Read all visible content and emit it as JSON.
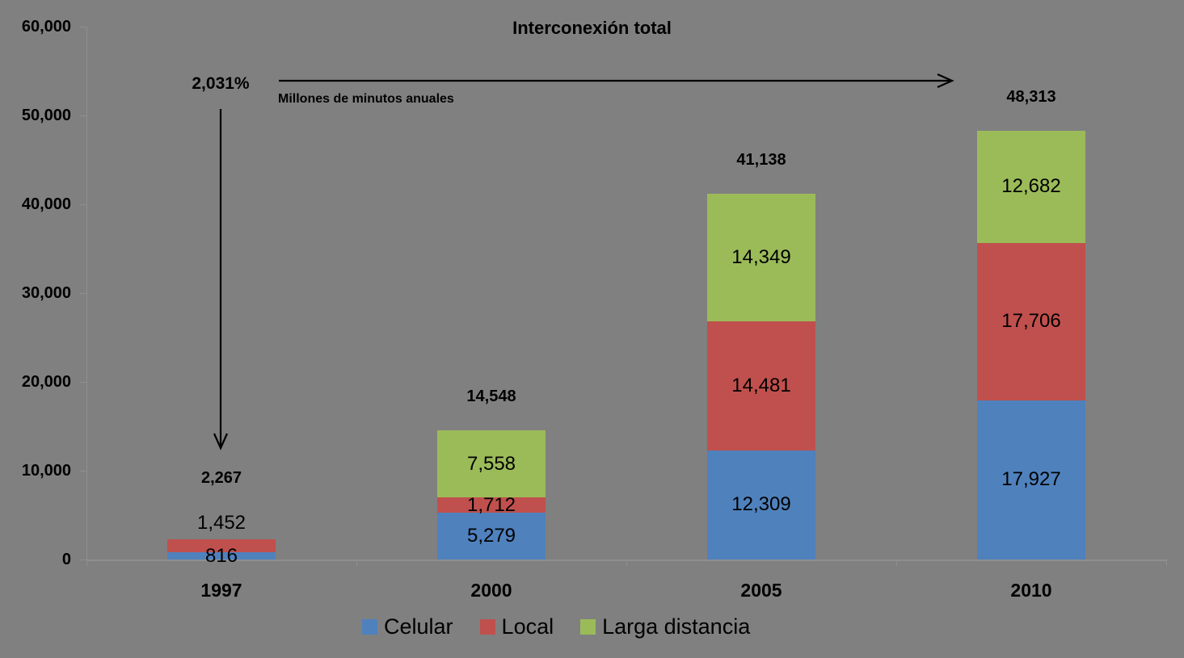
{
  "title": "Interconexión total",
  "annotations": {
    "growth_percent": "2,031%",
    "subtitle": "Millones de minutos anuales"
  },
  "colors": {
    "background": "#808080",
    "celular": "#4F81BD",
    "local": "#C0504D",
    "larga_distancia": "#9BBB59",
    "text": "#000000",
    "axis": "#8F8F8F"
  },
  "y_axis": {
    "tick_values": [
      0,
      10000,
      20000,
      30000,
      40000,
      50000,
      60000
    ],
    "tick_labels": [
      "0",
      "10,000",
      "20,000",
      "30,000",
      "40,000",
      "50,000",
      "60,000"
    ]
  },
  "chart_data": {
    "type": "bar",
    "stacked": true,
    "title": "Interconexión total",
    "xlabel": "",
    "ylabel": "",
    "units": "Millones de minutos anuales",
    "ylim": [
      0,
      60000
    ],
    "grid": false,
    "legend_position": "bottom",
    "categories": [
      "1997",
      "2000",
      "2005",
      "2010"
    ],
    "series": [
      {
        "name": "Celular",
        "color": "#4F81BD",
        "values": [
          816,
          5279,
          12309,
          17927
        ],
        "labels": [
          "816",
          "5,279",
          "12,309",
          "17,927"
        ]
      },
      {
        "name": "Local",
        "color": "#C0504D",
        "values": [
          1452,
          1712,
          14481,
          17706
        ],
        "labels": [
          "1,452",
          "1,712",
          "14,481",
          "17,706"
        ]
      },
      {
        "name": "Larga distancia",
        "color": "#9BBB59",
        "values": [
          0,
          7558,
          14349,
          12682
        ],
        "labels": [
          "",
          "7,558",
          "14,349",
          "12,682"
        ]
      }
    ],
    "totals": [
      2267,
      14548,
      41138,
      48313
    ],
    "total_labels": [
      "2,267",
      "14,548",
      "41,138",
      "48,313"
    ],
    "growth_annotation": "2,031%"
  }
}
